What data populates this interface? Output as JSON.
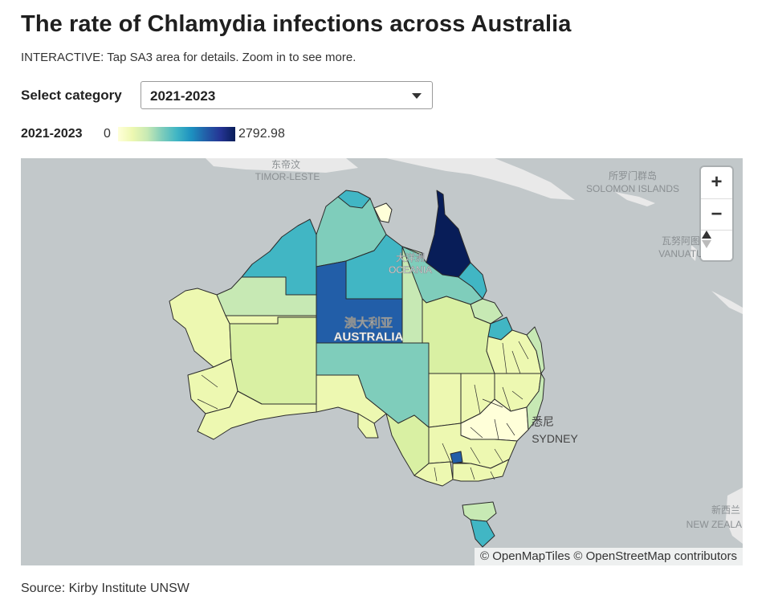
{
  "title": "The rate of Chlamydia infections across Australia",
  "subtitle": "INTERACTIVE: Tap SA3 area for details. Zoom in to see more.",
  "category": {
    "label": "Select category",
    "selected": "2021-2023"
  },
  "legend": {
    "name": "2021-2023",
    "min": "0",
    "max": "2792.98",
    "scale_colors": [
      "#ffffd9",
      "#edf8b1",
      "#c7e9b4",
      "#7fcdbb",
      "#41b6c4",
      "#1d91c0",
      "#225ea8",
      "#253494",
      "#081d58"
    ]
  },
  "map": {
    "labels": {
      "timor_cn": "东帝汶",
      "timor_en": "TIMOR-LESTE",
      "solomon_cn": "所罗门群岛",
      "solomon_en": "SOLOMON ISLANDS",
      "vanuatu_cn": "瓦努阿图",
      "vanuatu_en": "VANUATU",
      "oceania_cn": "大洋洲",
      "oceania_en": "OCEANIA",
      "australia_cn": "澳大利亚",
      "australia_en": "AUSTRALIA",
      "sydney_cn": "悉尼",
      "sydney_en": "SYDNEY",
      "nz_cn": "新西兰",
      "nz_en": "NEW ZEALAND"
    },
    "controls": {
      "zoom_in": "+",
      "zoom_out": "−"
    },
    "attribution": "© OpenMapTiles © OpenStreetMap contributors",
    "colors": {
      "water": "#c2c8ca",
      "land": "#e9e9e9",
      "border": "#2b2b2b"
    }
  },
  "source": "Source: Kirby Institute UNSW"
}
